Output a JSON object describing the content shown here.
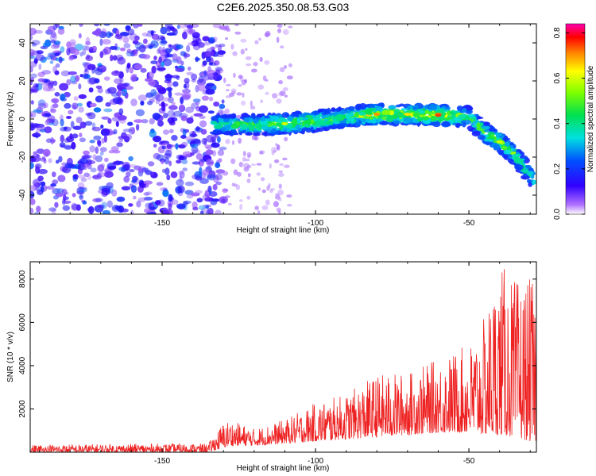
{
  "title": "C2E6.2025.350.08.53.G03",
  "chart_data": [
    {
      "type": "heatmap",
      "title": "C2E6.2025.350.08.53.G03",
      "xlabel": "Height of straight line (km)",
      "ylabel": "Frequency (Hz)",
      "xlim": [
        -193,
        -28
      ],
      "ylim": [
        -50,
        50
      ],
      "xticks": [
        -150,
        -100,
        -50
      ],
      "yticks": [
        -40,
        -20,
        0,
        20,
        40
      ],
      "colorbar": {
        "label": "Normalized spectral amplitude",
        "range": [
          0.0,
          0.84
        ],
        "ticks": [
          0.0,
          0.2,
          0.4,
          0.6,
          0.8
        ],
        "tick_labels": [
          "0.0",
          "0.2",
          "0.4",
          "0.6",
          "0.8"
        ]
      },
      "trace": {
        "description_x_km": [
          -133,
          -120,
          -110,
          -100,
          -90,
          -80,
          -70,
          -60,
          -50,
          -45,
          -40,
          -35,
          -32,
          -29
        ],
        "center_freq_hz": [
          -3,
          -3,
          -2.5,
          -1,
          1,
          2.5,
          2.5,
          2,
          1,
          -7,
          -12,
          -19,
          -25,
          -32
        ],
        "peak_amplitude": [
          0.45,
          0.5,
          0.6,
          0.55,
          0.55,
          0.7,
          0.65,
          0.75,
          0.5,
          0.55,
          0.6,
          0.55,
          0.5,
          0.45
        ],
        "band_halfwidth_hz": 5
      },
      "noise_region": {
        "x_range_km": [
          -193,
          -130
        ],
        "freq_range_hz": [
          -50,
          50
        ],
        "amplitude_range": [
          0.0,
          0.15
        ]
      }
    },
    {
      "type": "line",
      "xlabel": "Height of straight line (km)",
      "ylabel": "SNR (10 * v/v)",
      "xlim": [
        -193,
        -28
      ],
      "ylim": [
        0,
        8800
      ],
      "xticks": [
        -150,
        -100,
        -50
      ],
      "yticks": [
        2000,
        4000,
        6000,
        8000
      ],
      "series": [
        {
          "name": "SNR",
          "color": "#ee2222",
          "x_range_km": [
            -193,
            -28
          ],
          "envelope_x_km": [
            -193,
            -150,
            -135,
            -130,
            -128,
            -120,
            -110,
            -100,
            -90,
            -80,
            -70,
            -60,
            -50,
            -45,
            -40,
            -35,
            -30,
            -28
          ],
          "envelope_max": [
            350,
            400,
            400,
            1400,
            1500,
            1100,
            1500,
            2300,
            2700,
            3600,
            3700,
            4300,
            5000,
            6200,
            8800,
            8000,
            8000,
            7800
          ],
          "envelope_min": [
            0,
            0,
            0,
            200,
            300,
            300,
            400,
            500,
            600,
            700,
            800,
            900,
            900,
            800,
            800,
            700,
            500,
            500
          ]
        }
      ]
    }
  ]
}
